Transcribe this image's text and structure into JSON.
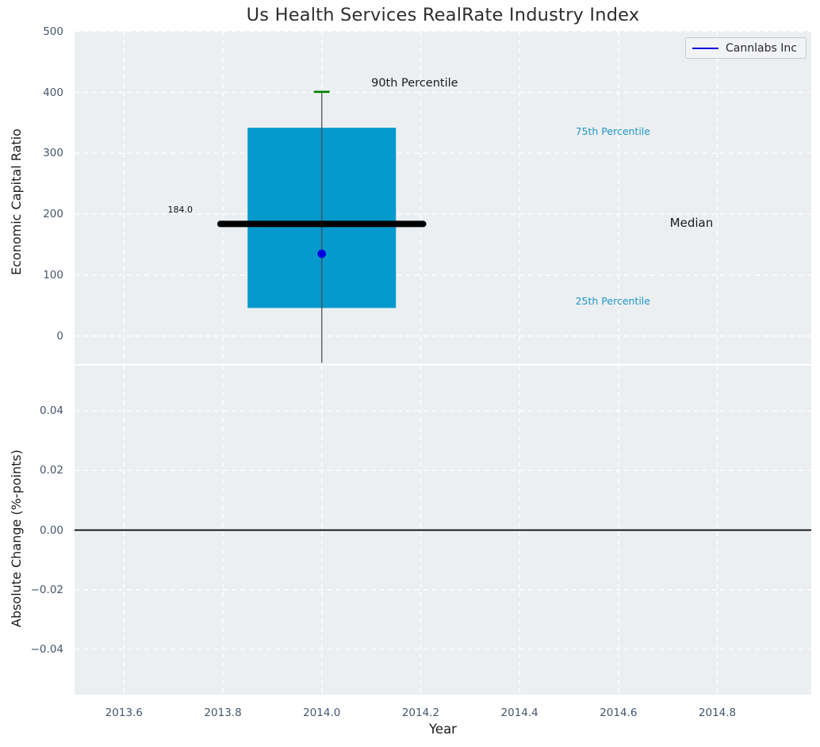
{
  "title": "Us Health Services RealRate Industry Index",
  "legend": {
    "label": "Cannlabs Inc",
    "line_color": "#0000dd"
  },
  "colors": {
    "axes_bg": "#eceff1",
    "grid": "#ffffff",
    "box_fill": "#0699ce",
    "median_line": "#000000",
    "whisker": "#4a4a4a",
    "p90_cap": "#008000",
    "point": "#0000e0",
    "zero_line": "#000000",
    "tick_text": "#45566d",
    "annotation_blue": "#2097c9",
    "annotation_dark": "#1a1a1a"
  },
  "chart_data": {
    "type": "boxplot",
    "title": "Us Health Services RealRate Industry Index",
    "x": {
      "label": "Year",
      "lim": [
        2013.5,
        2014.99
      ],
      "tick_values": [
        2013.6,
        2013.8,
        2014.0,
        2014.2,
        2014.4,
        2014.6,
        2014.8
      ],
      "tick_labels": [
        "2013.6",
        "2013.8",
        "2014.0",
        "2014.2",
        "2014.4",
        "2014.6",
        "2014.8"
      ]
    },
    "top_panel": {
      "ylabel": "Economic Capital Ratio",
      "ylim": [
        -46,
        501
      ],
      "tick_values": [
        0,
        100,
        200,
        300,
        400,
        500
      ],
      "tick_labels": [
        "0",
        "100",
        "200",
        "300",
        "400",
        "500"
      ],
      "box": {
        "x_center": 2014.0,
        "x_left": 2013.85,
        "x_right": 2014.15,
        "median_x_left": 2013.795,
        "median_x_right": 2014.205,
        "p10": -44,
        "p25": 46,
        "median": 184.0,
        "p75": 342,
        "p90": 401
      },
      "series_point": {
        "name": "Cannlabs Inc",
        "x": 2014.0,
        "y": 135
      },
      "annotations": [
        {
          "text": "90th Percentile",
          "x": 2014.1,
          "y": 414,
          "style": "dark",
          "size": 14.5,
          "anchor": "start"
        },
        {
          "text": "75th Percentile",
          "x": 2014.513,
          "y": 335,
          "style": "blue",
          "size": 12.5,
          "anchor": "start"
        },
        {
          "text": "Median",
          "x": 2014.704,
          "y": 186,
          "style": "dark",
          "size": 15,
          "anchor": "start"
        },
        {
          "text": "25th Percentile",
          "x": 2014.513,
          "y": 57,
          "style": "blue",
          "size": 12.5,
          "anchor": "start"
        },
        {
          "text": "184.0",
          "x": 2013.739,
          "y": 207,
          "style": "small-dark",
          "size": 11,
          "anchor": "end"
        }
      ]
    },
    "bottom_panel": {
      "ylabel": "Absolute Change (%-points)",
      "ylim": [
        -0.0552,
        0.0552
      ],
      "tick_values": [
        0.04,
        0.02,
        0,
        -0.02,
        -0.04
      ],
      "tick_labels": [
        "0.04",
        "0.02",
        "0.00",
        "−0.02",
        "−0.04"
      ],
      "zero_line_y": 0.0
    }
  }
}
